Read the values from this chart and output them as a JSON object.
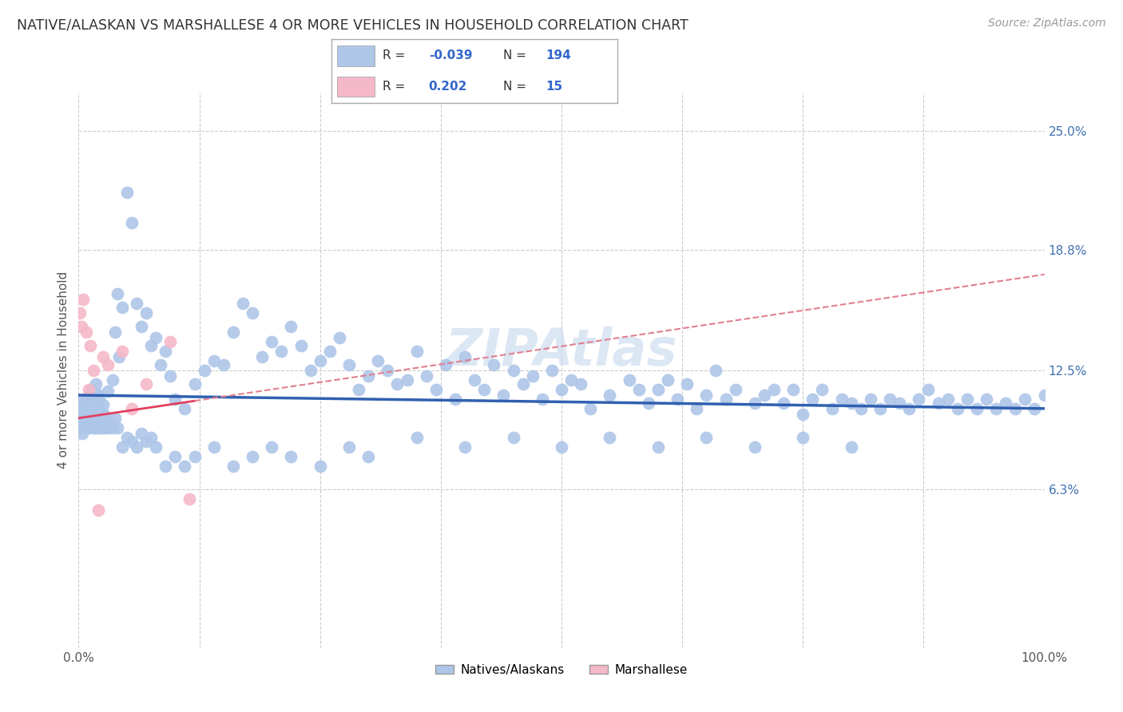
{
  "title": "NATIVE/ALASKAN VS MARSHALLESE 4 OR MORE VEHICLES IN HOUSEHOLD CORRELATION CHART",
  "source": "Source: ZipAtlas.com",
  "ylabel": "4 or more Vehicles in Household",
  "xlim": [
    0,
    100
  ],
  "ylim": [
    -2,
    27
  ],
  "ytick_vals": [
    6.3,
    12.5,
    18.8,
    25.0
  ],
  "ytick_labels": [
    "6.3%",
    "12.5%",
    "18.8%",
    "25.0%"
  ],
  "xtick_vals": [
    0,
    100
  ],
  "xtick_labels": [
    "0.0%",
    "100.0%"
  ],
  "r_blue": -0.039,
  "n_blue": 194,
  "r_pink": 0.202,
  "n_pink": 15,
  "blue_color": "#aec6e8",
  "pink_color": "#f5b8c8",
  "blue_line_color": "#3060b0",
  "pink_line_color": "#e04060",
  "pink_dash_color": "#e08090",
  "watermark_color": "#c5d8ee",
  "grid_color": "#cccccc",
  "background_color": "#ffffff",
  "title_color": "#333333",
  "source_color": "#999999",
  "axis_label_color": "#555555",
  "tick_color": "#555555",
  "right_tick_color": "#4070b0",
  "blue_x": [
    1.2,
    1.5,
    0.8,
    0.6,
    0.5,
    1.0,
    0.9,
    1.1,
    1.3,
    0.7,
    1.8,
    2.0,
    1.6,
    1.4,
    0.4,
    0.3,
    2.2,
    1.9,
    0.2,
    2.5,
    2.8,
    3.0,
    2.3,
    2.6,
    2.1,
    3.5,
    4.0,
    3.8,
    4.5,
    4.2,
    5.0,
    5.5,
    6.0,
    6.5,
    7.0,
    7.5,
    8.0,
    8.5,
    9.0,
    9.5,
    10.0,
    11.0,
    12.0,
    13.0,
    14.0,
    15.0,
    16.0,
    17.0,
    18.0,
    19.0,
    20.0,
    21.0,
    22.0,
    23.0,
    24.0,
    25.0,
    26.0,
    27.0,
    28.0,
    29.0,
    30.0,
    31.0,
    32.0,
    33.0,
    34.0,
    35.0,
    36.0,
    37.0,
    38.0,
    39.0,
    40.0,
    41.0,
    42.0,
    43.0,
    44.0,
    45.0,
    46.0,
    47.0,
    48.0,
    49.0,
    50.0,
    51.0,
    52.0,
    53.0,
    55.0,
    57.0,
    58.0,
    59.0,
    60.0,
    61.0,
    62.0,
    63.0,
    64.0,
    65.0,
    66.0,
    67.0,
    68.0,
    70.0,
    71.0,
    72.0,
    73.0,
    74.0,
    75.0,
    76.0,
    77.0,
    78.0,
    79.0,
    80.0,
    81.0,
    82.0,
    83.0,
    84.0,
    85.0,
    86.0,
    87.0,
    88.0,
    89.0,
    90.0,
    91.0,
    92.0,
    93.0,
    94.0,
    95.0,
    96.0,
    97.0,
    98.0,
    99.0,
    100.0,
    0.1,
    0.2,
    0.3,
    0.4,
    0.5,
    0.6,
    0.7,
    0.8,
    0.9,
    1.0,
    1.1,
    1.2,
    1.3,
    1.4,
    1.5,
    1.6,
    1.7,
    1.8,
    1.9,
    2.0,
    2.1,
    2.2,
    2.3,
    2.4,
    2.5,
    2.6,
    2.7,
    2.8,
    2.9,
    3.0,
    3.2,
    3.5,
    3.8,
    4.0,
    4.5,
    5.0,
    5.5,
    6.0,
    6.5,
    7.0,
    7.5,
    8.0,
    9.0,
    10.0,
    11.0,
    12.0,
    14.0,
    16.0,
    18.0,
    20.0,
    22.0,
    25.0,
    28.0,
    30.0,
    35.0,
    40.0,
    45.0,
    50.0,
    55.0,
    60.0,
    65.0,
    70.0,
    75.0,
    80.0
  ],
  "blue_y": [
    11.2,
    10.8,
    10.5,
    11.0,
    9.8,
    10.2,
    9.5,
    10.0,
    11.5,
    10.3,
    11.8,
    10.6,
    9.9,
    10.4,
    9.2,
    10.1,
    9.7,
    11.3,
    10.9,
    10.7,
    9.8,
    11.4,
    10.3,
    9.6,
    11.1,
    12.0,
    16.5,
    14.5,
    15.8,
    13.2,
    21.8,
    20.2,
    16.0,
    14.8,
    15.5,
    13.8,
    14.2,
    12.8,
    13.5,
    12.2,
    11.0,
    10.5,
    11.8,
    12.5,
    13.0,
    12.8,
    14.5,
    16.0,
    15.5,
    13.2,
    14.0,
    13.5,
    14.8,
    13.8,
    12.5,
    13.0,
    13.5,
    14.2,
    12.8,
    11.5,
    12.2,
    13.0,
    12.5,
    11.8,
    12.0,
    13.5,
    12.2,
    11.5,
    12.8,
    11.0,
    13.2,
    12.0,
    11.5,
    12.8,
    11.2,
    12.5,
    11.8,
    12.2,
    11.0,
    12.5,
    11.5,
    12.0,
    11.8,
    10.5,
    11.2,
    12.0,
    11.5,
    10.8,
    11.5,
    12.0,
    11.0,
    11.8,
    10.5,
    11.2,
    12.5,
    11.0,
    11.5,
    10.8,
    11.2,
    11.5,
    10.8,
    11.5,
    10.2,
    11.0,
    11.5,
    10.5,
    11.0,
    10.8,
    10.5,
    11.0,
    10.5,
    11.0,
    10.8,
    10.5,
    11.0,
    11.5,
    10.8,
    11.0,
    10.5,
    11.0,
    10.5,
    11.0,
    10.5,
    10.8,
    10.5,
    11.0,
    10.5,
    11.2,
    9.8,
    10.2,
    9.5,
    10.5,
    9.8,
    10.0,
    9.5,
    9.8,
    10.2,
    9.5,
    9.8,
    10.5,
    9.8,
    10.0,
    9.5,
    10.2,
    9.5,
    9.8,
    10.0,
    9.5,
    10.2,
    9.8,
    10.0,
    9.5,
    9.8,
    10.2,
    9.5,
    9.8,
    10.0,
    9.5,
    9.8,
    9.5,
    10.0,
    9.5,
    8.5,
    9.0,
    8.8,
    8.5,
    9.2,
    8.8,
    9.0,
    8.5,
    7.5,
    8.0,
    7.5,
    8.0,
    8.5,
    7.5,
    8.0,
    8.5,
    8.0,
    7.5,
    8.5,
    8.0,
    9.0,
    8.5,
    9.0,
    8.5,
    9.0,
    8.5,
    9.0,
    8.5,
    9.0,
    8.5
  ],
  "pink_x": [
    0.15,
    0.3,
    0.5,
    0.8,
    1.0,
    1.2,
    1.5,
    2.0,
    2.5,
    3.0,
    4.5,
    5.5,
    7.0,
    9.5,
    11.5
  ],
  "pink_y": [
    15.5,
    14.8,
    16.2,
    14.5,
    11.5,
    13.8,
    12.5,
    5.2,
    13.2,
    12.8,
    13.5,
    10.5,
    11.8,
    14.0,
    5.8
  ],
  "blue_trend_x0": 0,
  "blue_trend_y0": 11.2,
  "blue_trend_x1": 100,
  "blue_trend_y1": 10.5,
  "pink_trend_x0": 0,
  "pink_trend_y0": 10.0,
  "pink_trend_x1": 100,
  "pink_trend_y1": 17.5,
  "watermark_text": "ZIPAtlas",
  "legend_label_blue": "Natives/Alaskans",
  "legend_label_pink": "Marshallese"
}
